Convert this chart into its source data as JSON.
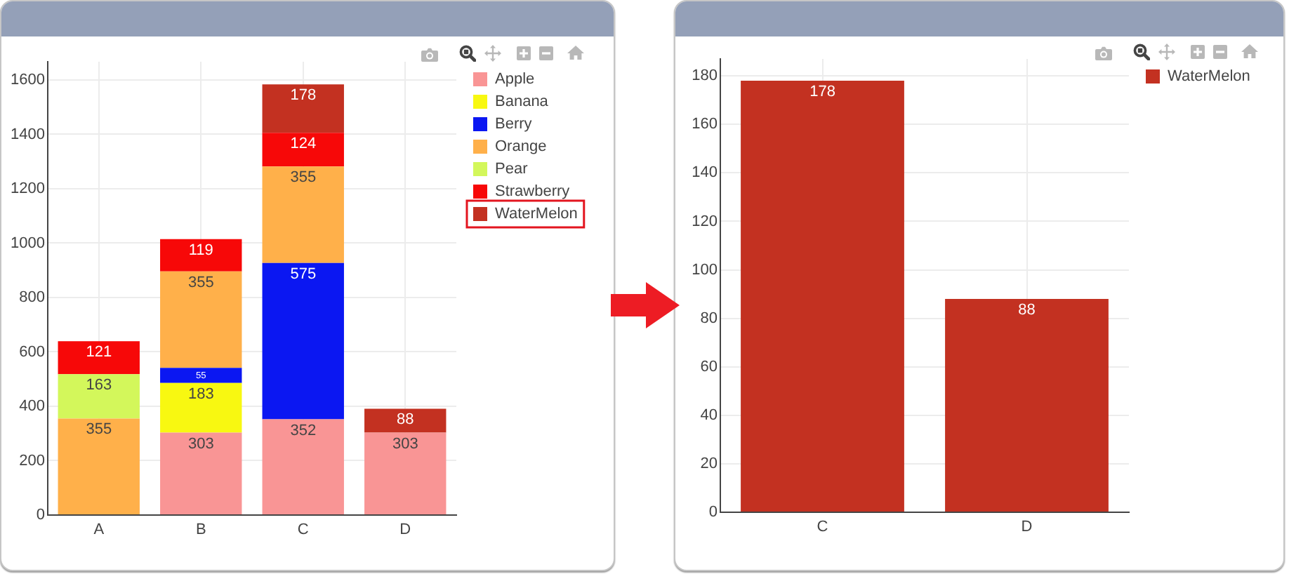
{
  "chart_data": [
    {
      "type": "bar",
      "categories": [
        "A",
        "B",
        "C",
        "D"
      ],
      "stacked": true,
      "series": [
        {
          "name": "Apple",
          "color": "#f99595",
          "values": [
            null,
            303,
            352,
            303
          ]
        },
        {
          "name": "Banana",
          "color": "#f8f811",
          "values": [
            null,
            183,
            null,
            null
          ]
        },
        {
          "name": "Berry",
          "color": "#0b17f2",
          "values": [
            null,
            55,
            575,
            null
          ]
        },
        {
          "name": "Orange",
          "color": "#ffb04a",
          "values": [
            355,
            355,
            355,
            null
          ]
        },
        {
          "name": "Pear",
          "color": "#d3f75b",
          "values": [
            163,
            null,
            null,
            null
          ]
        },
        {
          "name": "Strawberry",
          "color": "#f70808",
          "values": [
            121,
            119,
            124,
            null
          ]
        },
        {
          "name": "WaterMelon",
          "color": "#c33121",
          "values": [
            null,
            null,
            178,
            88
          ]
        }
      ],
      "ylim": [
        0,
        1667
      ],
      "yticks": [
        0,
        200,
        400,
        600,
        800,
        1000,
        1200,
        1400,
        1600
      ],
      "grid": true,
      "legend": "top right",
      "data_labels": true
    },
    {
      "type": "bar",
      "categories": [
        "C",
        "D"
      ],
      "series": [
        {
          "name": "WaterMelon",
          "color": "#c33121",
          "values": [
            178,
            88
          ]
        }
      ],
      "ylim": [
        0,
        187
      ],
      "yticks": [
        0,
        20,
        40,
        60,
        80,
        100,
        120,
        140,
        160,
        180
      ],
      "grid": true,
      "legend": "top right",
      "data_labels": true
    }
  ]
}
